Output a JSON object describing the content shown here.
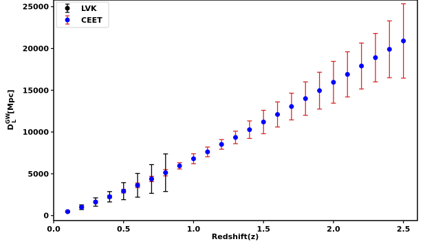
{
  "chart_data": {
    "type": "scatter",
    "xlabel": "Redshift(z)",
    "ylabel": "D",
    "ylabel_sup": "GW",
    "ylabel_sub": "L",
    "ylabel_unit": "[Mpc]",
    "xlim": [
      0.0,
      2.6
    ],
    "ylim": [
      -600,
      25800
    ],
    "xticks": [
      0.0,
      0.5,
      1.0,
      1.5,
      2.0,
      2.5
    ],
    "xtick_labels": [
      "0.0",
      "0.5",
      "1.0",
      "1.5",
      "2.0",
      "2.5"
    ],
    "yticks": [
      0,
      5000,
      10000,
      15000,
      20000,
      25000
    ],
    "ytick_labels": [
      "0",
      "5000",
      "10000",
      "15000",
      "20000",
      "25000"
    ],
    "grid": false,
    "legend_position": "top-left",
    "series": [
      {
        "name": "LVK",
        "color": "#000000",
        "x": [
          0.1,
          0.2,
          0.3,
          0.4,
          0.5,
          0.6,
          0.7,
          0.8
        ],
        "y": [
          470,
          1000,
          1620,
          2250,
          2920,
          3620,
          4380,
          5130
        ],
        "yerr": [
          90,
          280,
          500,
          620,
          1020,
          1420,
          1720,
          2250
        ]
      },
      {
        "name": "CEET",
        "color": "#d62728",
        "marker_color": "#0000ff",
        "x": [
          0.1,
          0.2,
          0.3,
          0.4,
          0.5,
          0.6,
          0.7,
          0.8,
          0.9,
          1.0,
          1.1,
          1.2,
          1.3,
          1.4,
          1.5,
          1.6,
          1.7,
          1.8,
          1.9,
          2.0,
          2.1,
          2.2,
          2.3,
          2.4,
          2.5
        ],
        "y": [
          470,
          1000,
          1620,
          2250,
          2920,
          3620,
          4380,
          5130,
          5950,
          6800,
          7620,
          8520,
          9350,
          10280,
          11200,
          12100,
          13050,
          14000,
          14950,
          15950,
          16900,
          17900,
          18900,
          19900,
          20900
        ],
        "yerr": [
          40,
          80,
          120,
          170,
          220,
          270,
          320,
          380,
          380,
          600,
          580,
          580,
          750,
          1050,
          1400,
          1500,
          1600,
          2000,
          2200,
          2500,
          2700,
          2750,
          2900,
          3400,
          4450
        ]
      }
    ]
  }
}
